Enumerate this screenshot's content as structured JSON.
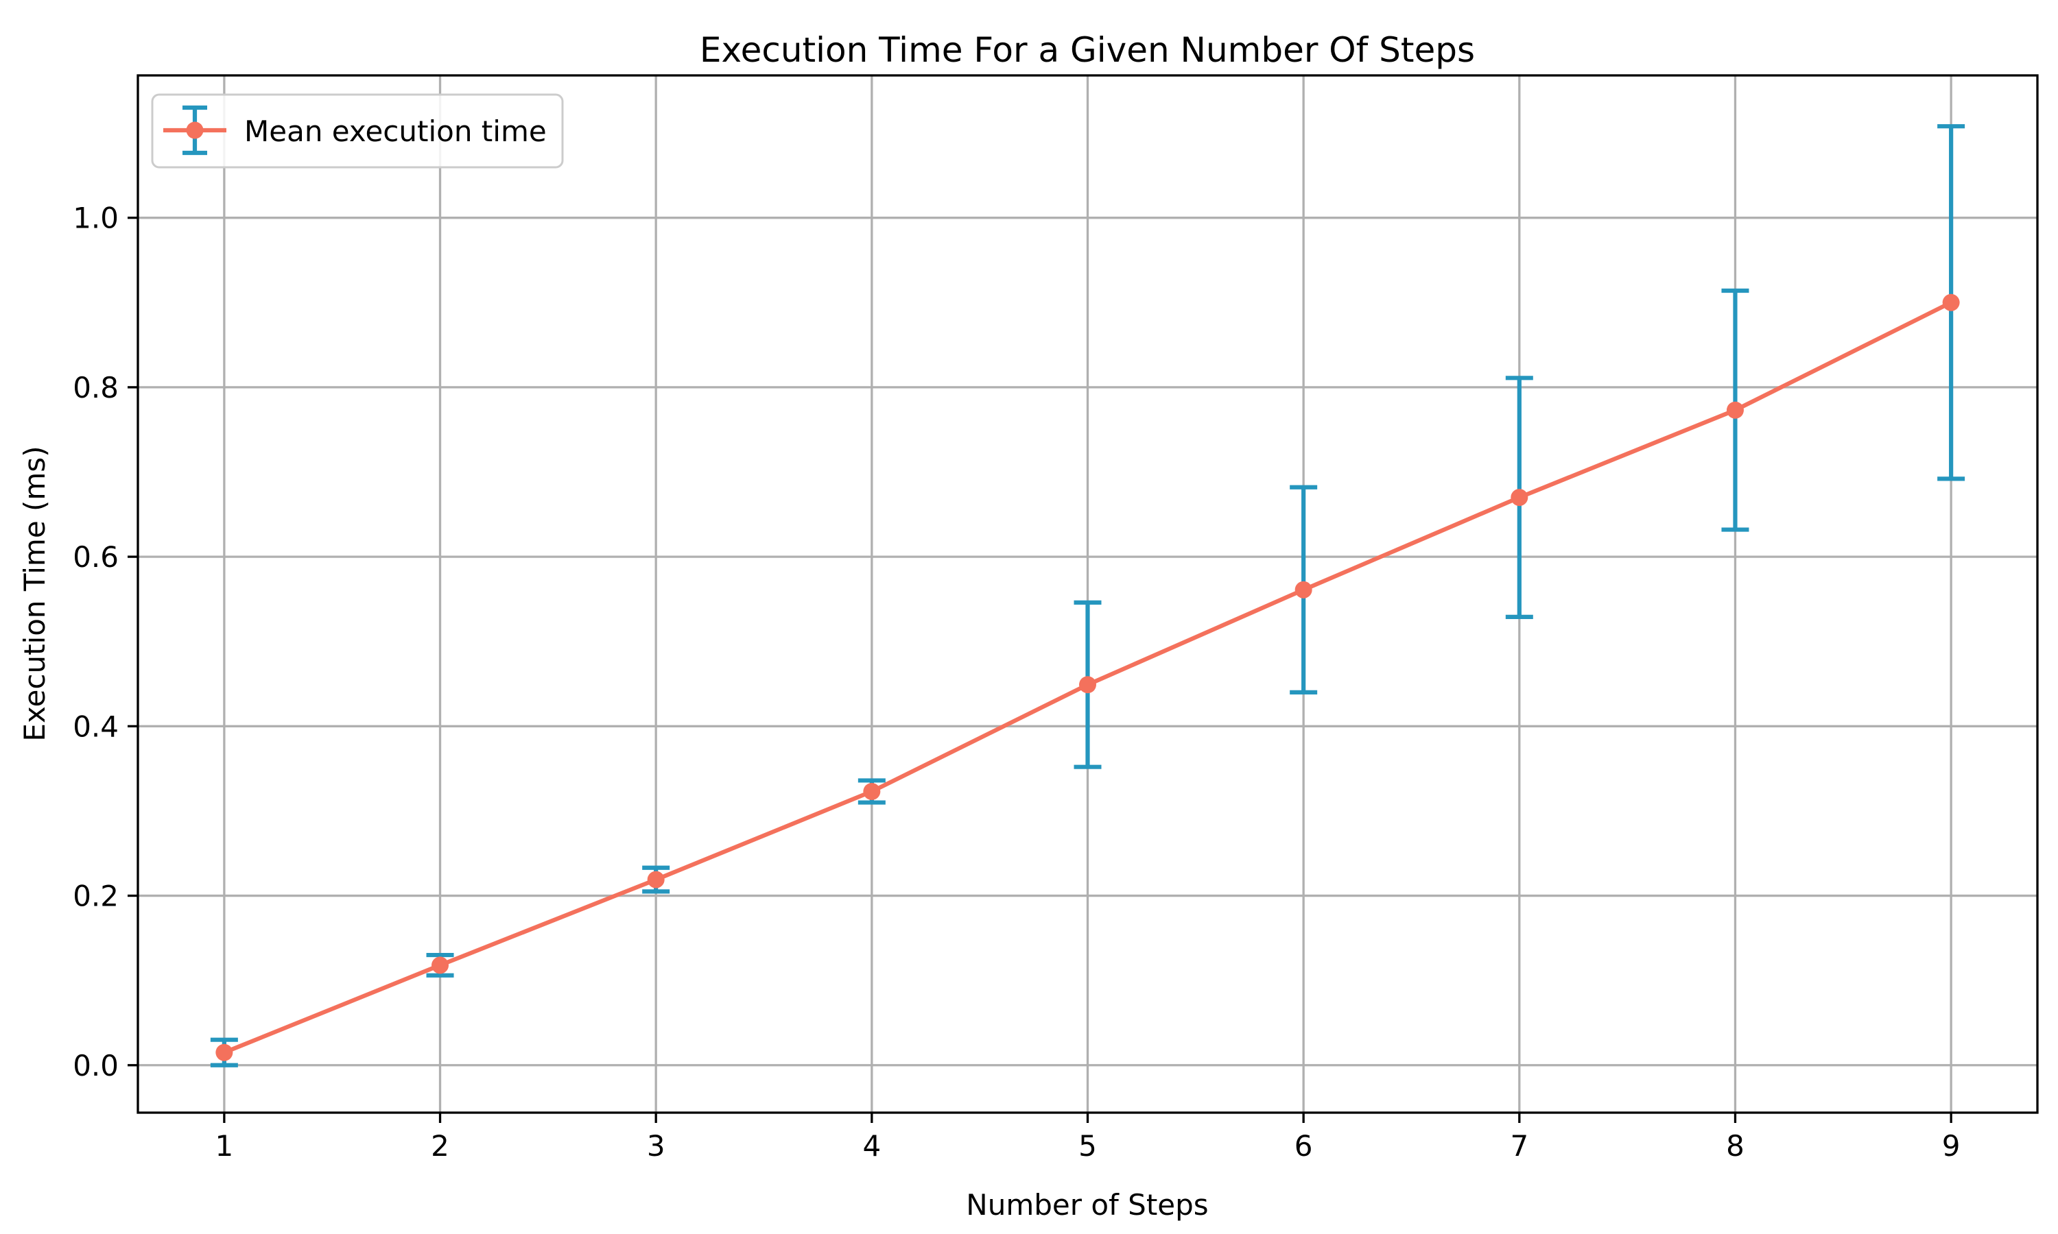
{
  "chart_data": {
    "type": "line",
    "title": "Execution Time For a Given Number Of Steps",
    "xlabel": "Number of Steps",
    "ylabel": "Execution Time (ms)",
    "legend": {
      "label": "Mean execution time",
      "position": "upper left",
      "marker": "circle-with-errorbar"
    },
    "x": [
      1,
      2,
      3,
      4,
      5,
      6,
      7,
      8,
      9
    ],
    "series": [
      {
        "name": "Mean execution time",
        "values": [
          0.015,
          0.118,
          0.219,
          0.323,
          0.449,
          0.561,
          0.67,
          0.773,
          0.9
        ],
        "yerr": [
          0.015,
          0.012,
          0.014,
          0.013,
          0.097,
          0.121,
          0.141,
          0.141,
          0.208
        ]
      }
    ],
    "xticks": [
      1,
      2,
      3,
      4,
      5,
      6,
      7,
      8,
      9
    ],
    "yticks": [
      0.0,
      0.2,
      0.4,
      0.6,
      0.8,
      1.0
    ],
    "xlim": [
      0.6,
      9.4
    ],
    "ylim": [
      -0.056,
      1.168
    ],
    "grid": true,
    "colors": {
      "line": "#f4715c",
      "marker": "#f4715c",
      "errorbar": "#2596be",
      "grid": "#b0b0b0",
      "spine": "#000000",
      "legend_border": "#cccccc",
      "background": "#ffffff"
    }
  }
}
